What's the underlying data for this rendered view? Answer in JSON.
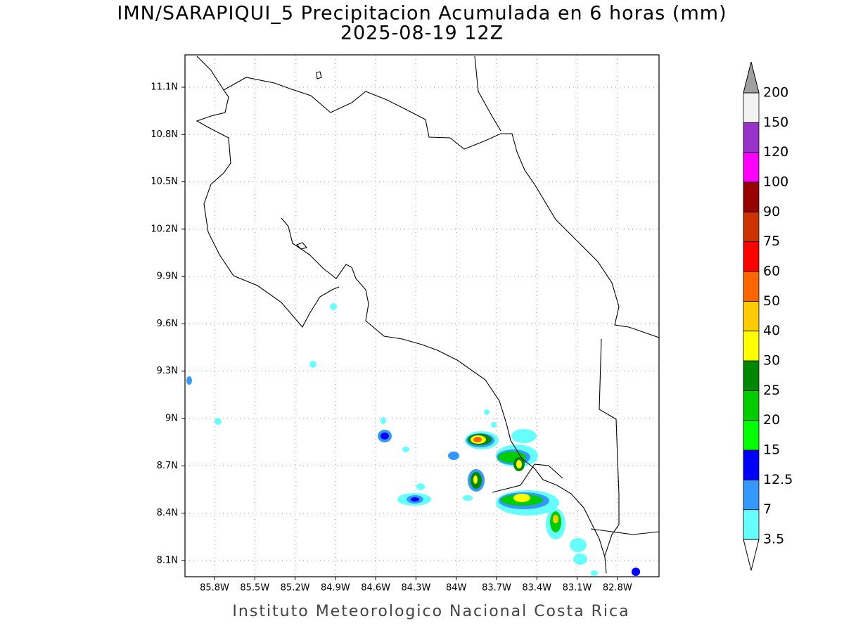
{
  "map": {
    "title": "IMN/SARAPIQUI_5 Precipitacion Acumulada en 6 horas (mm)",
    "subtitle": "2025-08-19 12Z",
    "footer": "Instituto Meteorologico Nacional Costa Rica",
    "xlim": [
      -86.02,
      -82.49
    ],
    "ylim": [
      7.997,
      11.305
    ],
    "xticks": [
      {
        "value": -85.8,
        "label": "85.8W"
      },
      {
        "value": -85.5,
        "label": "85.5W"
      },
      {
        "value": -85.2,
        "label": "85.2W"
      },
      {
        "value": -84.9,
        "label": "84.9W"
      },
      {
        "value": -84.6,
        "label": "84.6W"
      },
      {
        "value": -84.3,
        "label": "84.3W"
      },
      {
        "value": -84,
        "label": "84W"
      },
      {
        "value": -83.7,
        "label": "83.7W"
      },
      {
        "value": -83.4,
        "label": "83.4W"
      },
      {
        "value": -83.1,
        "label": "83.1W"
      },
      {
        "value": -82.8,
        "label": "82.8W"
      }
    ],
    "yticks": [
      {
        "value": 8.1,
        "label": "8.1N"
      },
      {
        "value": 8.4,
        "label": "8.4N"
      },
      {
        "value": 8.7,
        "label": "8.7N"
      },
      {
        "value": 9,
        "label": "9N"
      },
      {
        "value": 9.3,
        "label": "9.3N"
      },
      {
        "value": 9.6,
        "label": "9.6N"
      },
      {
        "value": 9.9,
        "label": "9.9N"
      },
      {
        "value": 10.2,
        "label": "10.2N"
      },
      {
        "value": 10.5,
        "label": "10.5N"
      },
      {
        "value": 10.8,
        "label": "10.8N"
      },
      {
        "value": 11.1,
        "label": "11.1N"
      }
    ],
    "grid": true
  },
  "colorbar": {
    "levels": [
      3.5,
      7,
      12.5,
      15,
      20,
      25,
      30,
      40,
      50,
      60,
      75,
      90,
      100,
      120,
      150,
      200
    ],
    "colors": [
      "#66ffff",
      "#3399ff",
      "#0000ff",
      "#00ff00",
      "#00cc00",
      "#008800",
      "#ffff00",
      "#ffcc00",
      "#ff6600",
      "#ff0000",
      "#cc3300",
      "#990000",
      "#ff00ff",
      "#9933cc",
      "#f2f2f2"
    ],
    "under_color": "#ffffff",
    "over_color": "#a0a0a0"
  }
}
